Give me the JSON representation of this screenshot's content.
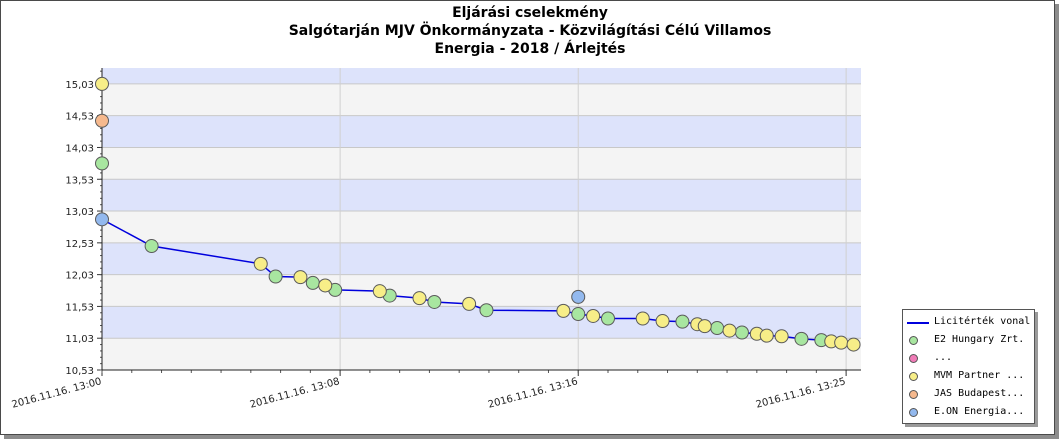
{
  "chart_data": {
    "type": "scatter",
    "title_lines": [
      "Eljárási cselekmény",
      "Salgótarján MJV Önkormányzata - Közvilágítási Célú Villamos",
      "Energia - 2018 / Árlejtés"
    ],
    "xlabel": "",
    "ylabel": "",
    "x_range": [
      "2016.11.16. 13:00:00",
      "2016.11.16. 13:25:30"
    ],
    "y_range": [
      10.53,
      15.28
    ],
    "y_ticks": [
      "10,53",
      "11,03",
      "11,53",
      "12,03",
      "12,53",
      "13,03",
      "13,53",
      "14,03",
      "14,53",
      "15,03"
    ],
    "x_ticks": [
      "2016.11.16. 13:00",
      "2016.11.16. 13:08",
      "2016.11.16. 13:16",
      "2016.11.16. 13:25"
    ],
    "grid": true,
    "background_bands": {
      "light": "#f4f4f4",
      "blue": "#dde3fb"
    },
    "legend_position": "bottom-right",
    "line_series": {
      "name": "Licitérték vonal",
      "color": "#0000dd",
      "points": [
        [
          "13:00:00",
          12.9
        ],
        [
          "13:01:40",
          12.48
        ],
        [
          "13:05:20",
          12.2
        ],
        [
          "13:05:50",
          12.0
        ],
        [
          "13:06:40",
          11.99
        ],
        [
          "13:07:05",
          11.9
        ],
        [
          "13:07:30",
          11.86
        ],
        [
          "13:07:50",
          11.79
        ],
        [
          "13:09:20",
          11.77
        ],
        [
          "13:09:40",
          11.7
        ],
        [
          "13:10:40",
          11.66
        ],
        [
          "13:11:10",
          11.6
        ],
        [
          "13:12:20",
          11.57
        ],
        [
          "13:12:55",
          11.47
        ],
        [
          "13:15:30",
          11.46
        ],
        [
          "13:16:00",
          11.41
        ],
        [
          "13:16:30",
          11.38
        ],
        [
          "13:17:00",
          11.34
        ],
        [
          "13:18:10",
          11.34
        ],
        [
          "13:18:50",
          11.3
        ],
        [
          "13:19:30",
          11.29
        ],
        [
          "13:20:00",
          11.25
        ],
        [
          "13:20:15",
          11.22
        ],
        [
          "13:20:40",
          11.19
        ],
        [
          "13:21:05",
          11.15
        ],
        [
          "13:21:30",
          11.12
        ],
        [
          "13:22:00",
          11.1
        ],
        [
          "13:22:20",
          11.07
        ],
        [
          "13:22:50",
          11.06
        ],
        [
          "13:23:30",
          11.02
        ],
        [
          "13:24:10",
          11.0
        ],
        [
          "13:24:30",
          10.98
        ],
        [
          "13:24:50",
          10.96
        ],
        [
          "13:25:15",
          10.93
        ]
      ]
    },
    "series": [
      {
        "name": "E2 Hungary Zrt.",
        "color": "#a8e6a0",
        "points": [
          [
            "13:00:00",
            13.78
          ],
          [
            "13:01:40",
            12.48
          ],
          [
            "13:05:50",
            12.0
          ],
          [
            "13:07:05",
            11.9
          ],
          [
            "13:07:50",
            11.79
          ],
          [
            "13:09:40",
            11.7
          ],
          [
            "13:11:10",
            11.6
          ],
          [
            "13:12:55",
            11.47
          ],
          [
            "13:16:00",
            11.41
          ],
          [
            "13:17:00",
            11.34
          ],
          [
            "13:19:30",
            11.29
          ],
          [
            "13:20:40",
            11.19
          ],
          [
            "13:21:30",
            11.12
          ],
          [
            "13:23:30",
            11.02
          ],
          [
            "13:24:10",
            11.0
          ]
        ]
      },
      {
        "name": "...",
        "color": "#f07bb7",
        "points": []
      },
      {
        "name": "MVM Partner ...",
        "color": "#f7ee88",
        "points": [
          [
            "13:00:00",
            15.03
          ],
          [
            "13:05:20",
            12.2
          ],
          [
            "13:06:40",
            11.99
          ],
          [
            "13:07:30",
            11.86
          ],
          [
            "13:09:20",
            11.77
          ],
          [
            "13:10:40",
            11.66
          ],
          [
            "13:12:20",
            11.57
          ],
          [
            "13:15:30",
            11.46
          ],
          [
            "13:16:30",
            11.38
          ],
          [
            "13:18:10",
            11.34
          ],
          [
            "13:18:50",
            11.3
          ],
          [
            "13:20:00",
            11.25
          ],
          [
            "13:20:15",
            11.22
          ],
          [
            "13:21:05",
            11.15
          ],
          [
            "13:22:00",
            11.1
          ],
          [
            "13:22:20",
            11.07
          ],
          [
            "13:22:50",
            11.06
          ],
          [
            "13:24:30",
            10.98
          ],
          [
            "13:24:50",
            10.96
          ],
          [
            "13:25:15",
            10.93
          ]
        ]
      },
      {
        "name": "JAS Budapest...",
        "color": "#f6b98e",
        "points": [
          [
            "13:00:00",
            14.45
          ]
        ]
      },
      {
        "name": "E.ON Energia...",
        "color": "#93b9ee",
        "points": [
          [
            "13:00:00",
            12.9
          ],
          [
            "13:16:00",
            11.68
          ]
        ]
      }
    ]
  }
}
